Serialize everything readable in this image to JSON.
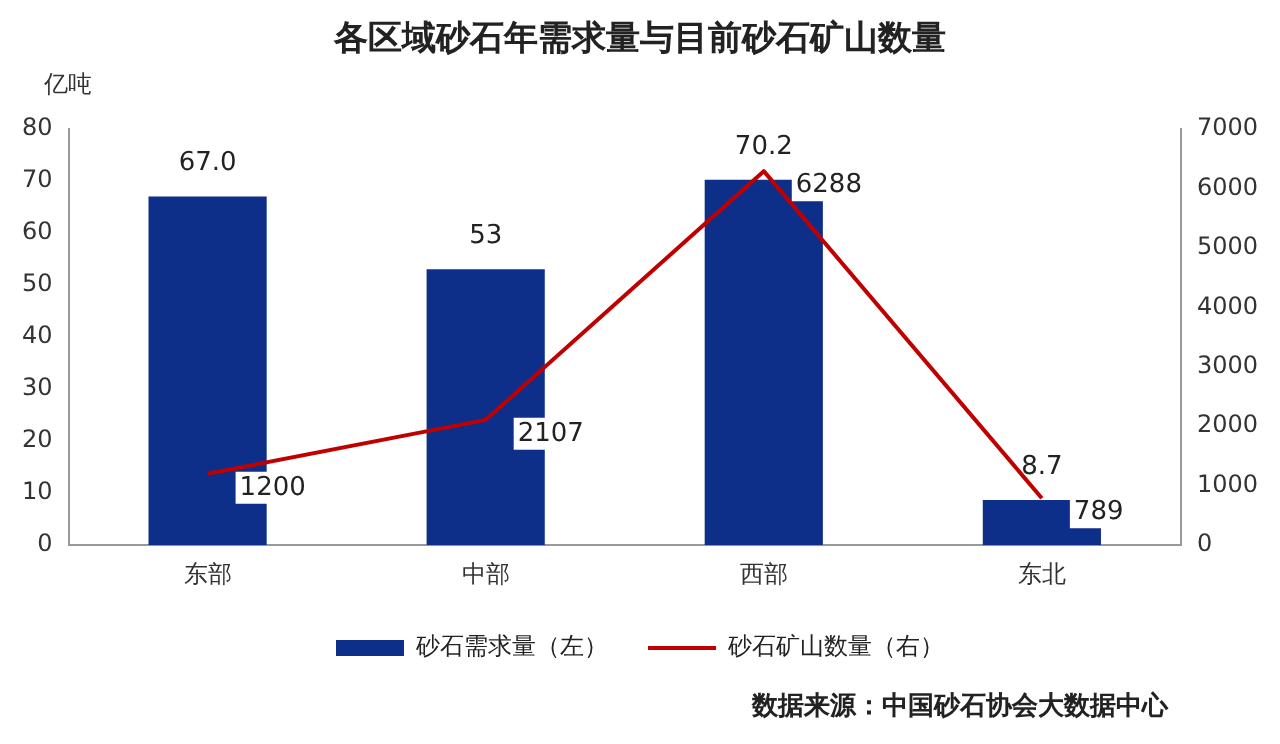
{
  "chart_data": {
    "type": "bar",
    "title": "各区域砂石年需求量与目前砂石矿山数量",
    "ylabel": "亿吨",
    "categories": [
      "东部",
      "中部",
      "西部",
      "东北"
    ],
    "series": [
      {
        "name": "砂石需求量（左）",
        "color": "#0d2f8a",
        "values": [
          67.0,
          53,
          70.2,
          8.7
        ],
        "value_labels": [
          "67.0",
          "53",
          "70.2",
          "8.7"
        ]
      },
      {
        "name": "砂石矿山数量（右）",
        "type": "line",
        "axis": "y2",
        "color": "#c00000",
        "values": [
          1200,
          2107,
          6288,
          789
        ],
        "value_labels": [
          "1200",
          "2107",
          "6288",
          "789"
        ]
      }
    ],
    "ylim": [
      0,
      80
    ],
    "yticks": [
      0,
      10,
      20,
      30,
      40,
      50,
      60,
      70,
      80
    ],
    "y2lim": [
      0,
      7000
    ],
    "y2ticks": [
      0,
      1000,
      2000,
      3000,
      4000,
      5000,
      6000,
      7000
    ],
    "legend": "bottom",
    "marker": "none",
    "grid": false,
    "annotations": [
      "数据来源：中国砂石协会大数据中心"
    ]
  }
}
